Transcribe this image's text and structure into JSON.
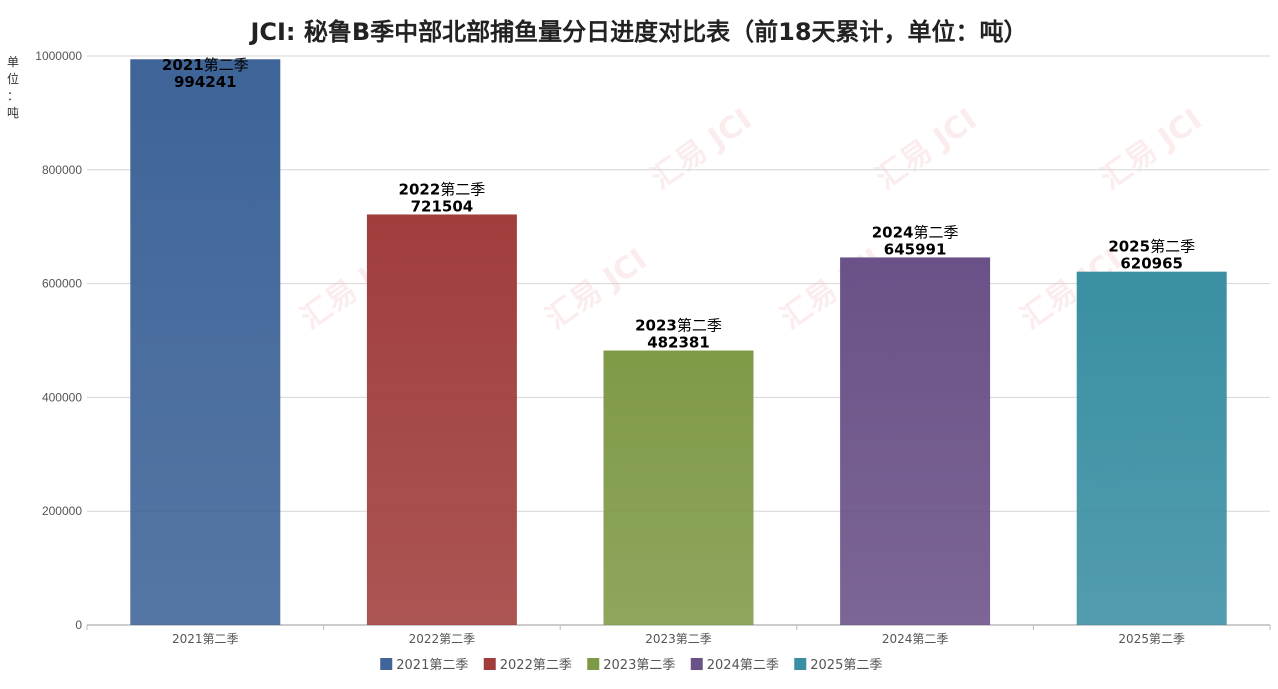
{
  "chart_data": {
    "type": "bar",
    "title": "JCI: 秘鲁B季中部北部捕鱼量分日进度对比表（前18天累计，单位：吨）",
    "ylabel": "单位：吨",
    "xlabel": "",
    "categories": [
      "2021第二季",
      "2022第二季",
      "2023第二季",
      "2024第二季",
      "2025第二季"
    ],
    "values": [
      994241,
      721504,
      482381,
      645991,
      620965
    ],
    "data_labels": [
      {
        "year": "2021",
        "suffix": "第二季",
        "value": "994241"
      },
      {
        "year": "2022",
        "suffix": "第二季",
        "value": "721504"
      },
      {
        "year": "2023",
        "suffix": "第二季",
        "value": "482381"
      },
      {
        "year": "2024",
        "suffix": "第二季",
        "value": "645991"
      },
      {
        "year": "2025",
        "suffix": "第二季",
        "value": "620965"
      }
    ],
    "colors": [
      "#3e6498",
      "#a03e3c",
      "#7f9a47",
      "#6a5187",
      "#3a8fa3"
    ],
    "ylim": [
      0,
      1000000
    ],
    "yticks": [
      "0",
      "200000",
      "400000",
      "600000",
      "800000",
      "1000000"
    ],
    "legend": {
      "position": "bottom",
      "entries": [
        "2021第二季",
        "2022第二季",
        "2023第二季",
        "2024第二季",
        "2025第二季"
      ]
    },
    "grid": true
  },
  "watermark": {
    "cn": "汇易",
    "en": "JCI"
  }
}
